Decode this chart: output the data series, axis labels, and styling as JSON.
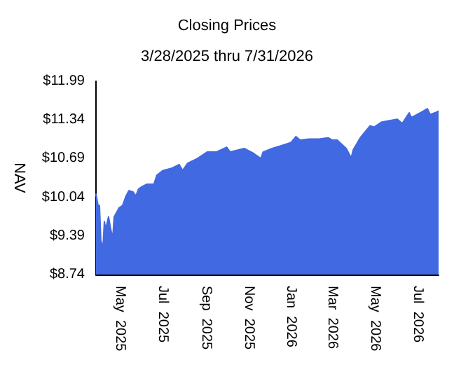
{
  "chart_data": {
    "type": "area",
    "title": "Closing Prices",
    "subtitle": "3/28/2025 thru 7/31/2026",
    "ylabel": "NAV",
    "x": [
      "2025-03-28",
      "2025-03-31",
      "2025-04-02",
      "2025-04-04",
      "2025-04-07",
      "2025-04-09",
      "2025-04-11",
      "2025-04-15",
      "2025-04-18",
      "2025-04-21",
      "2025-04-23",
      "2025-04-30",
      "2025-05-05",
      "2025-05-10",
      "2025-05-14",
      "2025-05-20",
      "2025-05-24",
      "2025-05-28",
      "2025-06-02",
      "2025-06-09",
      "2025-06-19",
      "2025-06-23",
      "2025-07-02",
      "2025-07-15",
      "2025-07-25",
      "2025-07-30",
      "2025-08-06",
      "2025-08-20",
      "2025-09-03",
      "2025-09-16",
      "2025-10-01",
      "2025-10-06",
      "2025-10-26",
      "2025-11-08",
      "2025-11-19",
      "2025-11-22",
      "2025-12-05",
      "2025-12-19",
      "2026-01-01",
      "2026-01-08",
      "2026-01-14",
      "2026-01-27",
      "2026-02-10",
      "2026-02-23",
      "2026-03-01",
      "2026-03-08",
      "2026-03-21",
      "2026-03-28",
      "2026-03-31",
      "2026-04-10",
      "2026-04-24",
      "2026-04-30",
      "2026-05-10",
      "2026-05-23",
      "2026-06-02",
      "2026-06-09",
      "2026-06-19",
      "2026-06-22",
      "2026-07-05",
      "2026-07-15",
      "2026-07-19",
      "2026-07-28",
      "2026-07-31"
    ],
    "series": [
      {
        "color": "#4169e1",
        "values": [
          10.1,
          9.9,
          9.9,
          9.31,
          9.19,
          9.63,
          9.51,
          9.71,
          9.51,
          9.35,
          9.71,
          9.86,
          9.9,
          10.06,
          10.15,
          10.13,
          10.06,
          10.18,
          10.22,
          10.26,
          10.26,
          10.41,
          10.49,
          10.53,
          10.59,
          10.49,
          10.61,
          10.69,
          10.8,
          10.8,
          10.88,
          10.8,
          10.86,
          10.78,
          10.69,
          10.8,
          10.86,
          10.91,
          10.96,
          11.06,
          11.0,
          11.02,
          11.02,
          11.04,
          11.0,
          11.0,
          10.86,
          10.7,
          10.84,
          11.04,
          11.24,
          11.22,
          11.3,
          11.33,
          11.35,
          11.28,
          11.46,
          11.38,
          11.46,
          11.53,
          11.43,
          11.47,
          11.49
        ]
      }
    ],
    "xlim": [
      "2025-03-28",
      "2026-07-31"
    ],
    "xticks": [
      {
        "value": "2025-05-01",
        "label": "May  2025"
      },
      {
        "value": "2025-07-01",
        "label": "Jul  2025"
      },
      {
        "value": "2025-09-01",
        "label": "Sep  2025"
      },
      {
        "value": "2025-11-01",
        "label": "Nov  2025"
      },
      {
        "value": "2026-01-01",
        "label": "Jan  2026"
      },
      {
        "value": "2026-03-01",
        "label": "Mar  2026"
      },
      {
        "value": "2026-05-01",
        "label": "May  2026"
      },
      {
        "value": "2026-07-01",
        "label": "Jul  2026"
      }
    ],
    "ylim": [
      8.74,
      11.99
    ],
    "yticks": [
      {
        "value": 8.74,
        "label": "$8.74"
      },
      {
        "value": 9.39,
        "label": "$9.39"
      },
      {
        "value": 10.04,
        "label": "$10.04"
      },
      {
        "value": 10.69,
        "label": "$10.69"
      },
      {
        "value": 11.34,
        "label": "$11.34"
      },
      {
        "value": 11.99,
        "label": "$11.99"
      }
    ],
    "grid": false,
    "marker": "none"
  }
}
